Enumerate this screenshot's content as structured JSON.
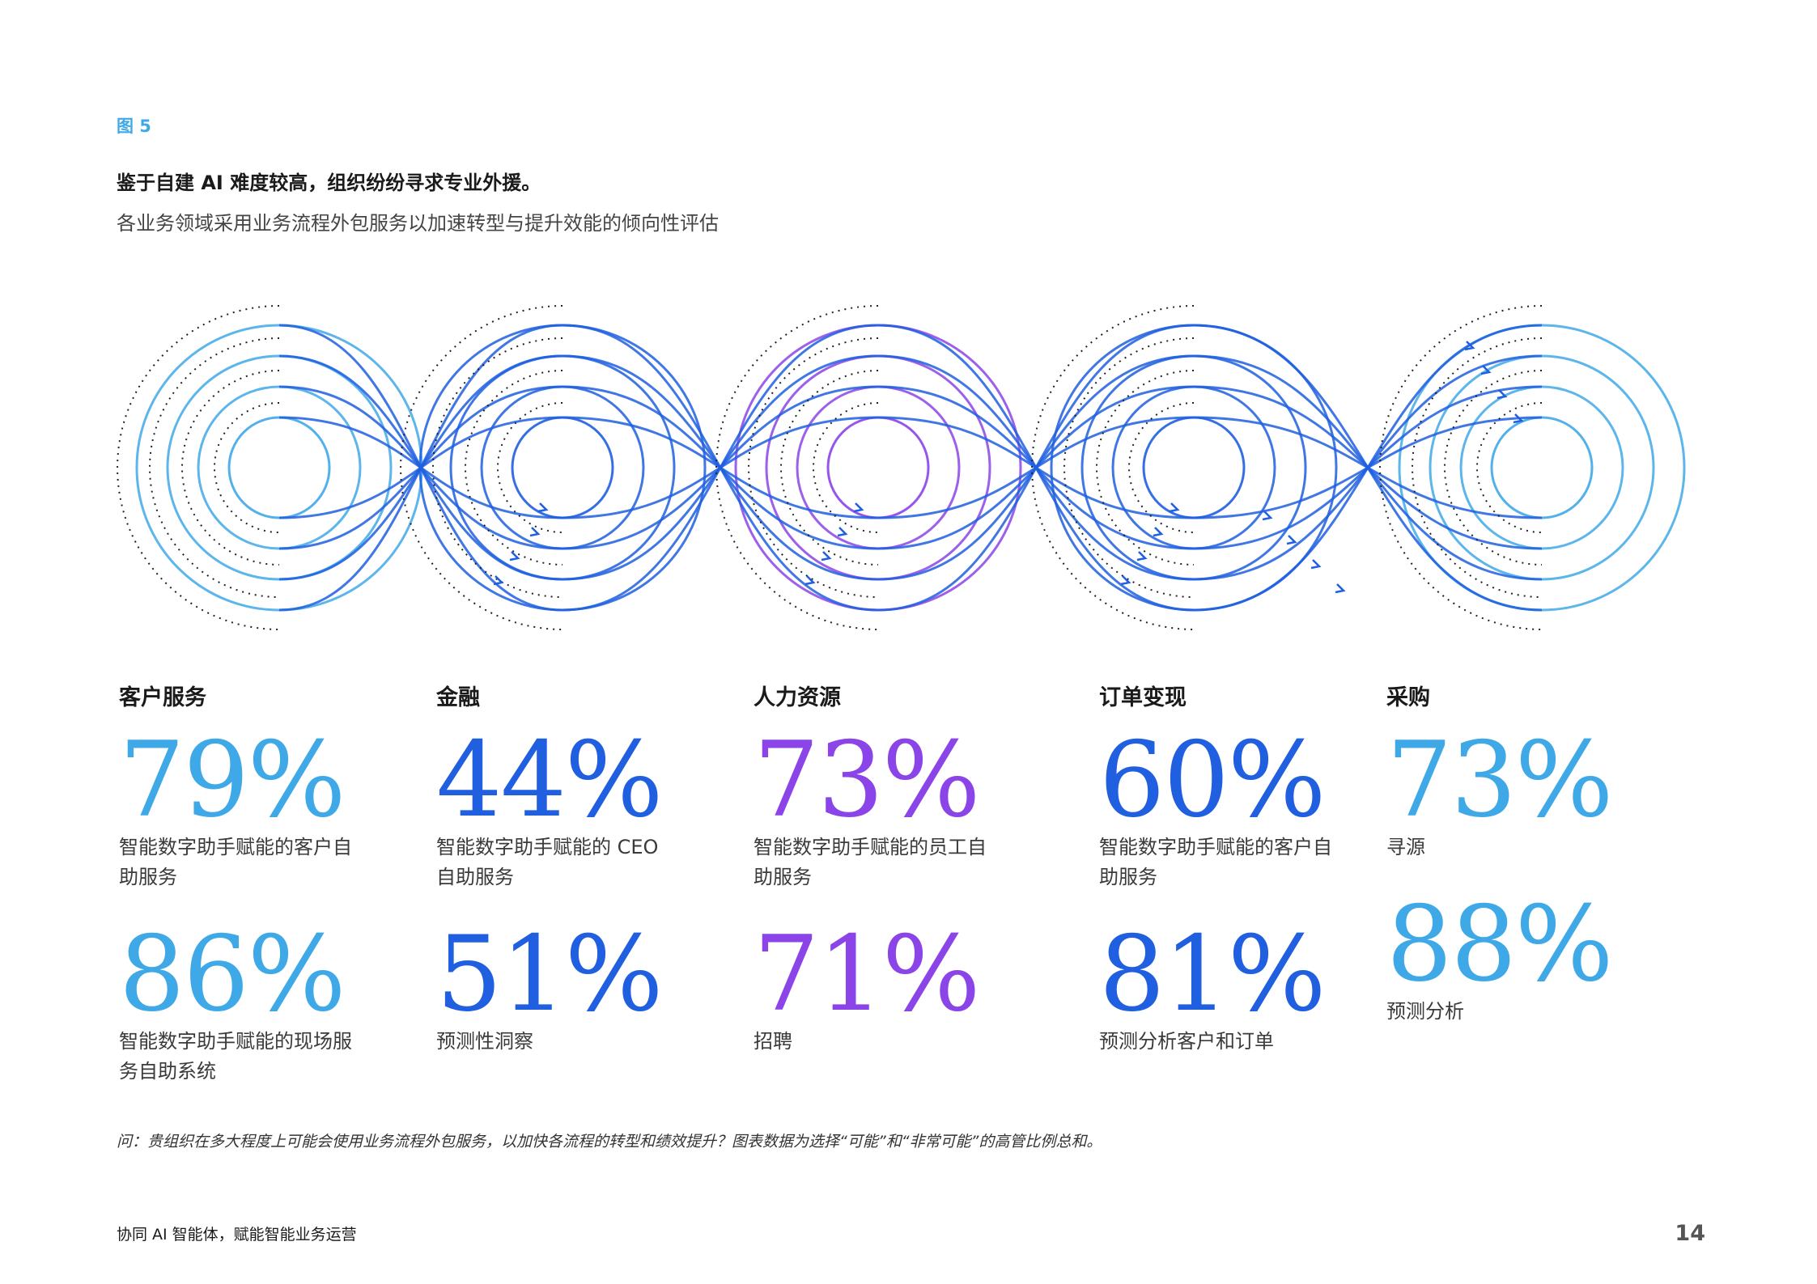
{
  "figure_label": "图 5",
  "title": "鉴于自建 AI 难度较高，组织纷纷寻求专业外援。",
  "subtitle": "各业务领域采用业务流程外包服务以加速转型与提升效能的倾向性评估",
  "colors": {
    "accent_light_blue": "#3fa9e8",
    "accent_blue": "#1f5fe0",
    "accent_purple": "#8b44e8",
    "label_blue": "#3fa9e8"
  },
  "categories": [
    {
      "name": "客户服务",
      "color": "#3fa9e8",
      "stats": [
        {
          "value": "79%",
          "desc": "智能数字助手赋能的客户自助服务"
        },
        {
          "value": "86%",
          "desc": "智能数字助手赋能的现场服务自助系统"
        }
      ]
    },
    {
      "name": "金融",
      "color": "#1f5fe0",
      "stats": [
        {
          "value": "44%",
          "desc": "智能数字助手赋能的 CEO 自助服务"
        },
        {
          "value": "51%",
          "desc": "预测性洞察"
        }
      ]
    },
    {
      "name": "人力资源",
      "color": "#8b44e8",
      "stats": [
        {
          "value": "73%",
          "desc": "智能数字助手赋能的员工自助服务"
        },
        {
          "value": "71%",
          "desc": "招聘"
        }
      ]
    },
    {
      "name": "订单变现",
      "color": "#1f5fe0",
      "stats": [
        {
          "value": "60%",
          "desc": "智能数字助手赋能的客户自助服务"
        },
        {
          "value": "81%",
          "desc": "预测分析客户和订单"
        }
      ]
    },
    {
      "name": "采购",
      "color": "#3fa9e8",
      "stats": [
        {
          "value": "73%",
          "desc": "寻源"
        },
        {
          "value": "88%",
          "desc": "预测分析"
        }
      ]
    }
  ],
  "note": "问：贵组织在多大程度上可能会使用业务流程外包服务，以加快各流程的转型和绩效提升？图表数据为选择“可能”和“非常可能”的高管比例总和。",
  "footer": "协同 AI 智能体，赋能智能业务运营",
  "page_number": "14"
}
